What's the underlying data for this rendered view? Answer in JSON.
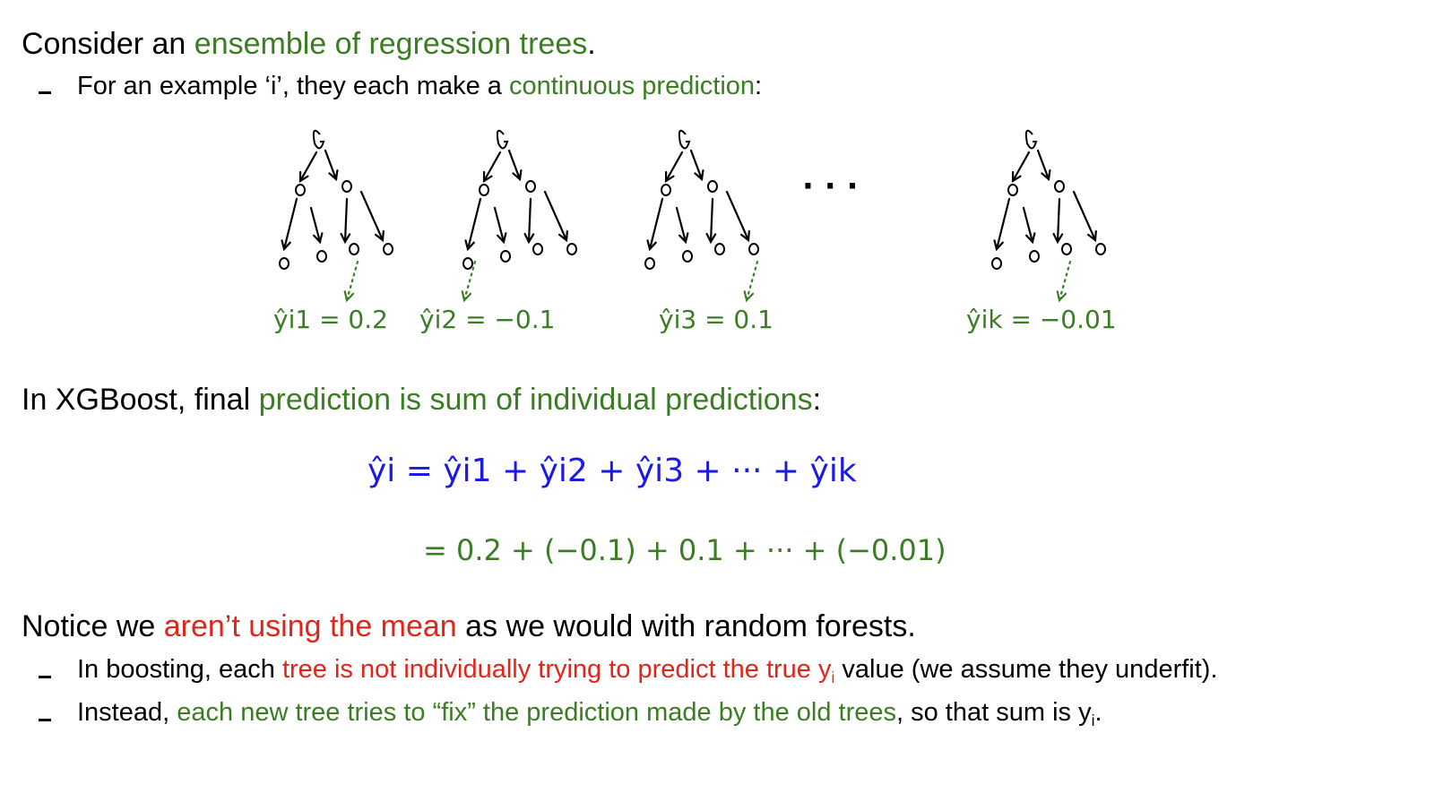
{
  "colors": {
    "green": "#3a7d22",
    "red": "#e0261a",
    "blue": "#1a1ae6",
    "black": "#000000"
  },
  "intro": {
    "prefix": "Consider an ",
    "highlight": "ensemble of regression trees",
    "suffix": "."
  },
  "intro_bullet": {
    "prefix": "For an example ‘i’, they each make a ",
    "highlight": "continuous prediction",
    "suffix": ":"
  },
  "trees": [
    {
      "label": "ŷi1 = 0.2"
    },
    {
      "label": "ŷi2 = −0.1"
    },
    {
      "label": "ŷi3 = 0.1"
    },
    {
      "label": "ŷik = −0.01"
    }
  ],
  "ellipsis": "· · ·",
  "xgb": {
    "prefix": "In XGBoost, final ",
    "highlight": "prediction is sum of individual predictions",
    "suffix": ":"
  },
  "equation_sum": "ŷi = ŷi1 + ŷi2 + ŷi3 + ··· + ŷik",
  "equation_values": "= 0.2 + (−0.1) + 0.1 + ··· + (−0.01)",
  "notice": {
    "prefix": "Notice we ",
    "highlight": "aren’t using the mean",
    "suffix": " as we would with random forests."
  },
  "bullet1": {
    "prefix": "In boosting, each ",
    "highlight": "tree is not individually trying to predict the true y",
    "highlight_sub": "i",
    "suffix": " value (we assume they underfit)."
  },
  "bullet2": {
    "prefix": "Instead, ",
    "highlight": "each new tree tries to “fix” the prediction made by the old trees",
    "suffix": ", so that sum is y",
    "suffix_sub": "i",
    "end": "."
  }
}
